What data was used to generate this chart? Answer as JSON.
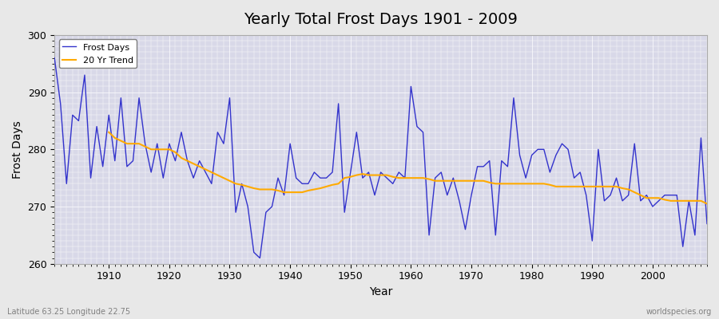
{
  "title": "Yearly Total Frost Days 1901 - 2009",
  "xlabel": "Year",
  "ylabel": "Frost Days",
  "xlim": [
    1901,
    2009
  ],
  "ylim": [
    260,
    300
  ],
  "yticks": [
    260,
    270,
    280,
    290,
    300
  ],
  "xticks": [
    1910,
    1920,
    1930,
    1940,
    1950,
    1960,
    1970,
    1980,
    1990,
    2000
  ],
  "frost_color": "#3333cc",
  "trend_color": "#ffaa00",
  "bg_color": "#e8e8e8",
  "plot_bg_color": "#d8d8e8",
  "grid_color": "#ffffff",
  "bottom_left_text": "Latitude 63.25 Longitude 22.75",
  "bottom_right_text": "worldspecies.org",
  "legend_entries": [
    "Frost Days",
    "20 Yr Trend"
  ],
  "years": [
    1901,
    1902,
    1903,
    1904,
    1905,
    1906,
    1907,
    1908,
    1909,
    1910,
    1911,
    1912,
    1913,
    1914,
    1915,
    1916,
    1917,
    1918,
    1919,
    1920,
    1921,
    1922,
    1923,
    1924,
    1925,
    1926,
    1927,
    1928,
    1929,
    1930,
    1931,
    1932,
    1933,
    1934,
    1935,
    1936,
    1937,
    1938,
    1939,
    1940,
    1941,
    1942,
    1943,
    1944,
    1945,
    1946,
    1947,
    1948,
    1949,
    1950,
    1951,
    1952,
    1953,
    1954,
    1955,
    1956,
    1957,
    1958,
    1959,
    1960,
    1961,
    1962,
    1963,
    1964,
    1965,
    1966,
    1967,
    1968,
    1969,
    1970,
    1971,
    1972,
    1973,
    1974,
    1975,
    1976,
    1977,
    1978,
    1979,
    1980,
    1981,
    1982,
    1983,
    1984,
    1985,
    1986,
    1987,
    1988,
    1989,
    1990,
    1991,
    1992,
    1993,
    1994,
    1995,
    1996,
    1997,
    1998,
    1999,
    2000,
    2001,
    2002,
    2003,
    2004,
    2005,
    2006,
    2007,
    2008,
    2009
  ],
  "frost_days": [
    296,
    288,
    274,
    286,
    285,
    293,
    275,
    284,
    277,
    286,
    278,
    289,
    277,
    278,
    289,
    281,
    276,
    281,
    275,
    281,
    278,
    283,
    278,
    275,
    278,
    276,
    274,
    283,
    281,
    289,
    269,
    274,
    270,
    262,
    261,
    269,
    270,
    275,
    272,
    281,
    275,
    274,
    274,
    276,
    275,
    275,
    276,
    288,
    269,
    276,
    283,
    275,
    276,
    272,
    276,
    275,
    274,
    276,
    275,
    291,
    284,
    283,
    265,
    275,
    276,
    272,
    275,
    271,
    266,
    272,
    277,
    277,
    278,
    265,
    278,
    277,
    289,
    279,
    275,
    279,
    280,
    280,
    276,
    279,
    281,
    280,
    275,
    276,
    272,
    264,
    280,
    271,
    272,
    275,
    271,
    272,
    281,
    271,
    272,
    270,
    271,
    272,
    272,
    272,
    263,
    271,
    265,
    282,
    267
  ],
  "trend_years": [
    1910,
    1911,
    1912,
    1913,
    1914,
    1915,
    1916,
    1917,
    1918,
    1919,
    1920,
    1921,
    1922,
    1923,
    1924,
    1925,
    1926,
    1927,
    1928,
    1929,
    1930,
    1931,
    1932,
    1933,
    1934,
    1935,
    1936,
    1937,
    1938,
    1939,
    1940,
    1941,
    1942,
    1943,
    1944,
    1945,
    1946,
    1947,
    1948,
    1949,
    1950,
    1951,
    1952,
    1953,
    1954,
    1955,
    1956,
    1957,
    1958,
    1959,
    1960,
    1961,
    1962,
    1963,
    1964,
    1965,
    1966,
    1967,
    1968,
    1969,
    1970,
    1971,
    1972,
    1973,
    1974,
    1975,
    1976,
    1977,
    1978,
    1979,
    1980,
    1981,
    1982,
    1983,
    1984,
    1985,
    1986,
    1987,
    1988,
    1989,
    1990,
    1991,
    1992,
    1993,
    1994,
    1995,
    1996,
    1997,
    1998,
    1999,
    2000,
    2001,
    2002,
    2003,
    2004,
    2005,
    2006,
    2007,
    2008,
    2009
  ],
  "trend_values": [
    283.0,
    282.0,
    281.5,
    281.0,
    281.0,
    281.0,
    280.5,
    280.0,
    280.0,
    280.0,
    280.0,
    279.5,
    278.5,
    278.0,
    277.5,
    277.0,
    276.5,
    276.0,
    275.5,
    275.0,
    274.5,
    274.0,
    273.8,
    273.5,
    273.2,
    273.0,
    273.0,
    273.0,
    272.8,
    272.5,
    272.5,
    272.5,
    272.5,
    272.8,
    273.0,
    273.2,
    273.5,
    273.8,
    274.0,
    275.0,
    275.2,
    275.5,
    275.7,
    275.5,
    275.5,
    275.5,
    275.5,
    275.2,
    275.0,
    275.0,
    275.0,
    275.0,
    275.0,
    274.8,
    274.5,
    274.5,
    274.5,
    274.5,
    274.5,
    274.5,
    274.5,
    274.5,
    274.5,
    274.2,
    274.0,
    274.0,
    274.0,
    274.0,
    274.0,
    274.0,
    274.0,
    274.0,
    274.0,
    273.8,
    273.5,
    273.5,
    273.5,
    273.5,
    273.5,
    273.5,
    273.5,
    273.5,
    273.5,
    273.5,
    273.5,
    273.2,
    273.0,
    272.5,
    272.0,
    271.5,
    271.5,
    271.5,
    271.2,
    271.0,
    271.0,
    271.0,
    271.0,
    271.0,
    271.0,
    270.5
  ]
}
